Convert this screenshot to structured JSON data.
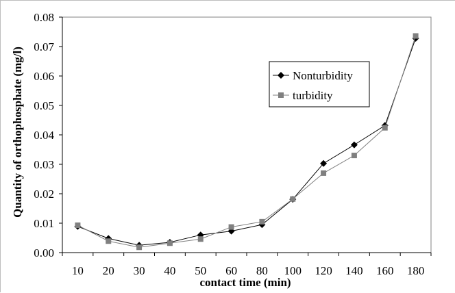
{
  "chart_data": {
    "type": "line",
    "xlabel": "contact time (min)",
    "ylabel": "Quantity of orthophosphate (mg/l)",
    "categories": [
      "10",
      "20",
      "30",
      "40",
      "50",
      "60",
      "80",
      "100",
      "120",
      "140",
      "160",
      "180"
    ],
    "x_tick_labels": [
      "10",
      "20",
      "30",
      "40",
      "50",
      "60",
      "80",
      "100",
      "120",
      "140",
      "160",
      "180"
    ],
    "ylim": [
      0,
      0.08
    ],
    "y_tick_labels": [
      "0.00",
      "0.01",
      "0.02",
      "0.03",
      "0.04",
      "0.05",
      "0.06",
      "0.07",
      "0.08"
    ],
    "grid": false,
    "legend_position": "top-right",
    "series": [
      {
        "name": "Nonturbidity",
        "marker": "diamond",
        "color": "#000000",
        "values": [
          0.0089,
          0.0048,
          0.0025,
          0.0035,
          0.006,
          0.0073,
          0.0095,
          0.0181,
          0.0303,
          0.0366,
          0.0432,
          0.0728
        ]
      },
      {
        "name": "turbidity",
        "marker": "square",
        "color": "#808080",
        "values": [
          0.0093,
          0.0039,
          0.0018,
          0.0032,
          0.0046,
          0.0087,
          0.0105,
          0.0182,
          0.027,
          0.033,
          0.0424,
          0.0736
        ]
      }
    ]
  }
}
